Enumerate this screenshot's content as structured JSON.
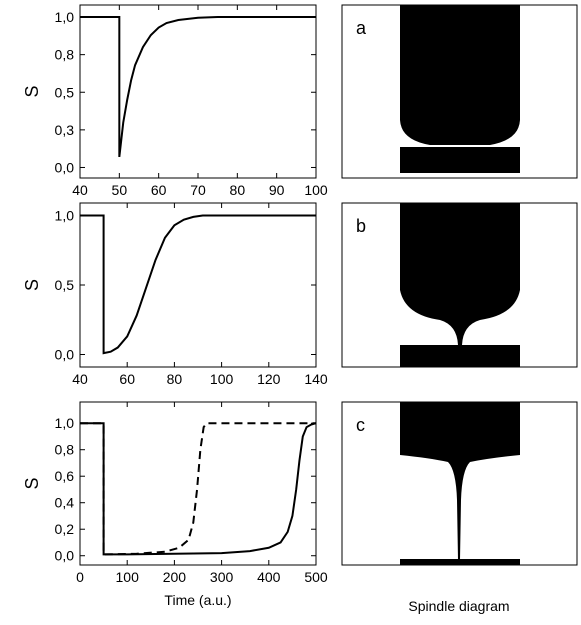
{
  "chart_data": [
    {
      "type": "line",
      "ylabel": "S",
      "xlim": [
        40,
        100
      ],
      "xticks": [
        40,
        50,
        60,
        70,
        80,
        90,
        100
      ],
      "ylim": [
        -0.07,
        1.08
      ],
      "yticks": [
        {
          "value": 0,
          "label": "0,0"
        },
        {
          "value": 0.25,
          "label": "0,3"
        },
        {
          "value": 0.5,
          "label": "0,5"
        },
        {
          "value": 0.75,
          "label": "0,8"
        },
        {
          "value": 1,
          "label": "1,0"
        }
      ],
      "series": [
        {
          "color": "#000000",
          "dash": false,
          "x": [
            40,
            50,
            50,
            51,
            52,
            53,
            54,
            56,
            58,
            60,
            62,
            65,
            70,
            75,
            100
          ],
          "values": [
            1,
            1,
            0.07,
            0.3,
            0.45,
            0.58,
            0.68,
            0.8,
            0.88,
            0.93,
            0.96,
            0.98,
            0.995,
            1,
            1
          ]
        }
      ]
    },
    {
      "type": "line",
      "ylabel": "S",
      "xlim": [
        40,
        140
      ],
      "xticks": [
        40,
        60,
        80,
        100,
        120,
        140
      ],
      "ylim": [
        -0.09,
        1.09
      ],
      "yticks": [
        {
          "value": 0,
          "label": "0,0"
        },
        {
          "value": 0.5,
          "label": "0,5"
        },
        {
          "value": 1,
          "label": "1,0"
        }
      ],
      "series": [
        {
          "color": "#000000",
          "dash": false,
          "x": [
            40,
            50,
            50,
            53,
            56,
            60,
            64,
            68,
            72,
            76,
            80,
            84,
            88,
            92,
            140
          ],
          "values": [
            1,
            1,
            0.01,
            0.02,
            0.05,
            0.13,
            0.28,
            0.48,
            0.68,
            0.84,
            0.93,
            0.97,
            0.99,
            1,
            1
          ]
        }
      ]
    },
    {
      "type": "line",
      "ylabel": "S",
      "xlabel": "Time (a.u.)",
      "xlim": [
        0,
        500
      ],
      "xticks": [
        0,
        100,
        200,
        300,
        400,
        500
      ],
      "ylim": [
        -0.07,
        1.16
      ],
      "yticks": [
        {
          "value": 0,
          "label": "0,0"
        },
        {
          "value": 0.2,
          "label": "0,2"
        },
        {
          "value": 0.4,
          "label": "0,4"
        },
        {
          "value": 0.6,
          "label": "0,6"
        },
        {
          "value": 0.8,
          "label": "0,8"
        },
        {
          "value": 1,
          "label": "1,0"
        }
      ],
      "series": [
        {
          "color": "#000000",
          "dash": false,
          "x": [
            0,
            50,
            50,
            100,
            200,
            300,
            360,
            400,
            425,
            440,
            450,
            458,
            465,
            472,
            480,
            490,
            500
          ],
          "values": [
            1,
            1,
            0.01,
            0.01,
            0.015,
            0.02,
            0.035,
            0.06,
            0.1,
            0.18,
            0.3,
            0.5,
            0.72,
            0.9,
            0.97,
            0.99,
            1
          ]
        },
        {
          "color": "#000000",
          "dash": true,
          "x": [
            0,
            50,
            50,
            120,
            180,
            210,
            230,
            240,
            248,
            255,
            262,
            268,
            500
          ],
          "values": [
            1,
            1,
            0.01,
            0.015,
            0.03,
            0.06,
            0.12,
            0.25,
            0.5,
            0.8,
            0.97,
            1,
            1
          ]
        }
      ]
    }
  ],
  "panels": [
    {
      "label": "a"
    },
    {
      "label": "b"
    },
    {
      "label": "c"
    }
  ],
  "caption": "Spindle diagram"
}
